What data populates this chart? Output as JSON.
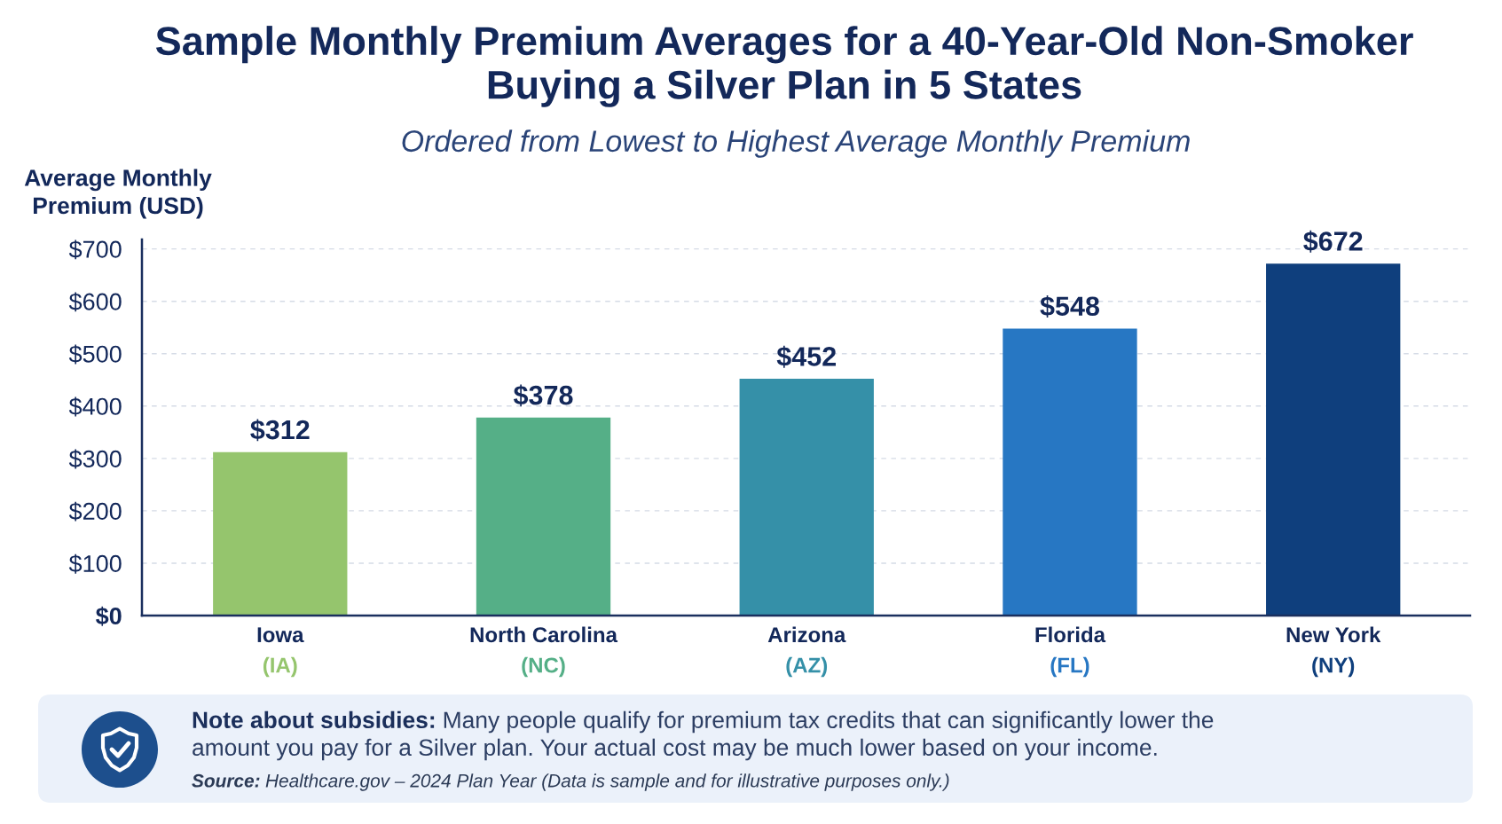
{
  "chart_data": {
    "type": "bar",
    "title": "Sample Monthly Premium Averages for a 40-Year-Old Non-Smoker\nBuying a Silver Plan in 5 States",
    "subtitle": "Ordered from Lowest to Highest Average Monthly Premium",
    "ylabel": "Average Monthly\nPremium (USD)",
    "categories": [
      "Iowa\n(IA)",
      "North Carolina\n(NC)",
      "Arizona\n(AZ)",
      "Florida\n(FL)",
      "New York\n(NY)"
    ],
    "values": [
      312,
      378,
      452,
      548,
      672
    ],
    "value_labels": [
      "$312",
      "$378",
      "$452",
      "$548",
      "$672"
    ],
    "colors": [
      "#95c56d",
      "#55af87",
      "#3590a8",
      "#2777c3",
      "#0f3f7d"
    ],
    "ylim": [
      0,
      718
    ],
    "yticks": [
      {
        "value": 0,
        "label": "$0"
      },
      {
        "value": 100,
        "label": "$100"
      },
      {
        "value": 200,
        "label": "$200"
      },
      {
        "value": 300,
        "label": "$300"
      },
      {
        "value": 400,
        "label": "$400"
      },
      {
        "value": 500,
        "label": "$500"
      },
      {
        "value": 600,
        "label": "$600"
      },
      {
        "value": 700,
        "label": "$700"
      }
    ],
    "grid": "y",
    "annotations": [
      "Note about subsidies:",
      "Many people qualify for premium tax credits that can significantly lower the",
      "amount you pay for a Silver plan. Your actual cost may be much lower based on your income.",
      "Source:",
      "Healthcare.gov – 2024 Plan Year (Data is sample and for illustrative purposes only.)"
    ]
  }
}
